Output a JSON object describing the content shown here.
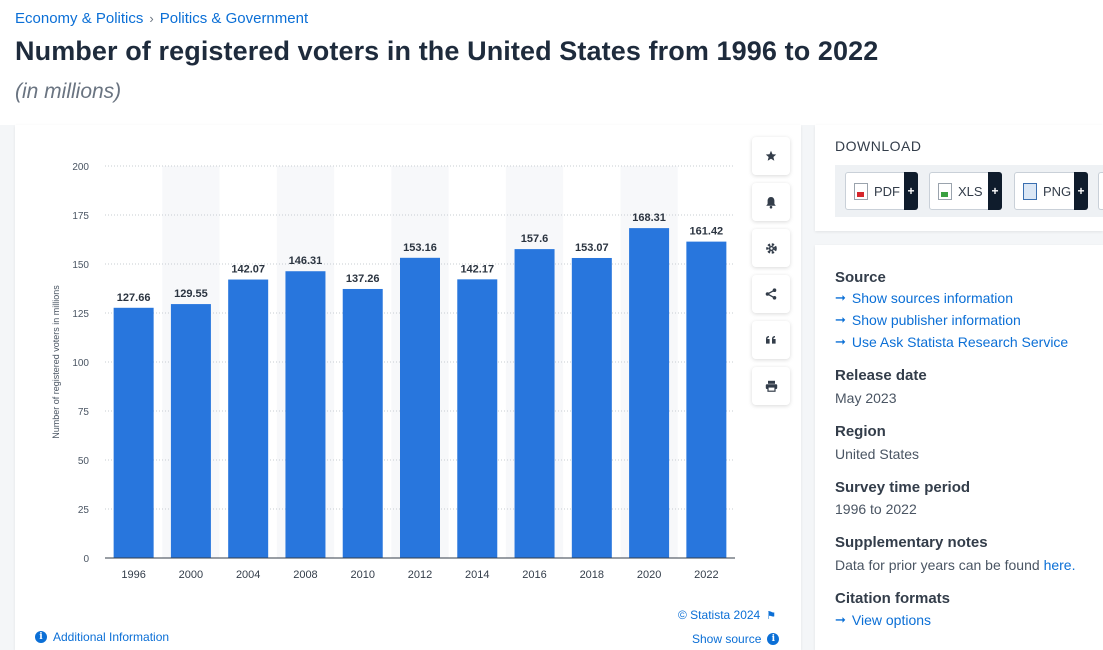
{
  "breadcrumb": {
    "item1": "Economy & Politics",
    "separator": "›",
    "item2": "Politics & Government"
  },
  "title": "Number of registered voters in the United States from 1996 to 2022",
  "subtitle": "(in millions)",
  "chart_data": {
    "type": "bar",
    "categories": [
      "1996",
      "2000",
      "2004",
      "2008",
      "2010",
      "2012",
      "2014",
      "2016",
      "2018",
      "2020",
      "2022"
    ],
    "values": [
      127.66,
      129.55,
      142.07,
      146.31,
      137.26,
      153.16,
      142.17,
      157.6,
      153.07,
      168.31,
      161.42
    ],
    "value_labels": [
      "127.66",
      "129.55",
      "142.07",
      "146.31",
      "137.26",
      "153.16",
      "142.17",
      "157.6",
      "153.07",
      "168.31",
      "161.42"
    ],
    "ylabel": "Number of registered voters in millions",
    "xlabel": "",
    "ylim": [
      0,
      200
    ],
    "yticks": [
      "0",
      "25",
      "50",
      "75",
      "100",
      "125",
      "150",
      "175",
      "200"
    ],
    "bar_color": "#2876dd",
    "grid": true
  },
  "chart_footer": {
    "copyright": "© Statista 2024",
    "additional_info": "Additional Information",
    "show_source": "Show source"
  },
  "tools": [
    "star-icon",
    "bell-icon",
    "gear-icon",
    "share-icon",
    "quote-icon",
    "print-icon"
  ],
  "download": {
    "title": "DOWNLOAD",
    "buttons": [
      {
        "label": "PDF",
        "icon": "pdf-file-icon"
      },
      {
        "label": "XLS",
        "icon": "xls-file-icon"
      },
      {
        "label": "PNG",
        "icon": "png-file-icon"
      }
    ],
    "plus": "+"
  },
  "info": {
    "source_heading": "Source",
    "source_links": [
      "Show sources information",
      "Show publisher information",
      "Use Ask Statista Research Service"
    ],
    "release_heading": "Release date",
    "release_value": "May 2023",
    "region_heading": "Region",
    "region_value": "United States",
    "period_heading": "Survey time period",
    "period_value": "1996 to 2022",
    "notes_heading": "Supplementary notes",
    "notes_value": "Data for prior years can be found",
    "notes_link": "here.",
    "citation_heading": "Citation formats",
    "citation_link": "View options"
  },
  "colors": {
    "accent": "#0b6fd6",
    "bar": "#2876dd",
    "dark": "#0f1c2c"
  }
}
